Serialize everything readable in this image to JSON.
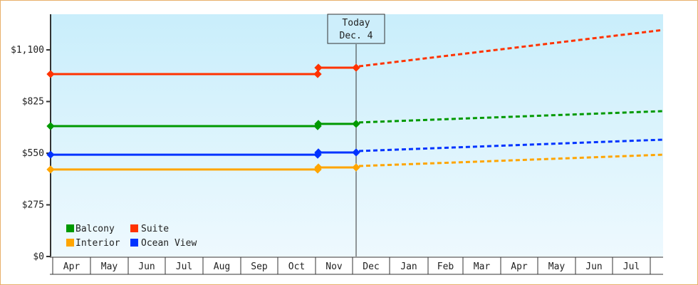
{
  "chart_data": {
    "type": "line",
    "title": "",
    "xlabel": "",
    "ylabel": "",
    "ylim": [
      0,
      1200
    ],
    "yticks": [
      {
        "value": 0,
        "label": "$0"
      },
      {
        "value": 275,
        "label": "$275"
      },
      {
        "value": 550,
        "label": "$550"
      },
      {
        "value": 825,
        "label": "$825"
      },
      {
        "value": 1100,
        "label": "$1,100"
      }
    ],
    "categories": [
      "Apr",
      "May",
      "Jun",
      "Jul",
      "Aug",
      "Sep",
      "Oct",
      "Nov",
      "Dec",
      "Jan",
      "Feb",
      "Mar",
      "Apr",
      "May",
      "Jun",
      "Jul"
    ],
    "today_marker": {
      "line1": "Today",
      "line2": "Dec. 4"
    },
    "grid": false,
    "legend_position": "bottom-left inside",
    "series": [
      {
        "name": "Suite",
        "color": "#ff3300",
        "historical": [
          [
            0,
            971
          ],
          [
            7.0,
            971
          ],
          [
            7.0,
            1005
          ],
          [
            8.0,
            1005
          ]
        ],
        "forecast_end": 1206
      },
      {
        "name": "Balcony",
        "color": "#009900",
        "historical": [
          [
            0,
            694
          ],
          [
            7.0,
            694
          ],
          [
            7.0,
            706
          ],
          [
            8.0,
            706
          ]
        ],
        "forecast_end": 774
      },
      {
        "name": "Ocean View",
        "color": "#0033ff",
        "historical": [
          [
            0,
            542
          ],
          [
            7.0,
            542
          ],
          [
            7.0,
            554
          ],
          [
            8.0,
            554
          ]
        ],
        "forecast_end": 622
      },
      {
        "name": "Interior",
        "color": "#ffa500",
        "historical": [
          [
            0,
            463
          ],
          [
            7.0,
            463
          ],
          [
            7.0,
            474
          ],
          [
            8.0,
            474
          ]
        ],
        "forecast_end": 542
      }
    ]
  },
  "legend": [
    {
      "label": "Balcony",
      "color": "#009900"
    },
    {
      "label": "Suite",
      "color": "#ff3300"
    },
    {
      "label": "Interior",
      "color": "#ffa500"
    },
    {
      "label": "Ocean View",
      "color": "#0033ff"
    }
  ]
}
